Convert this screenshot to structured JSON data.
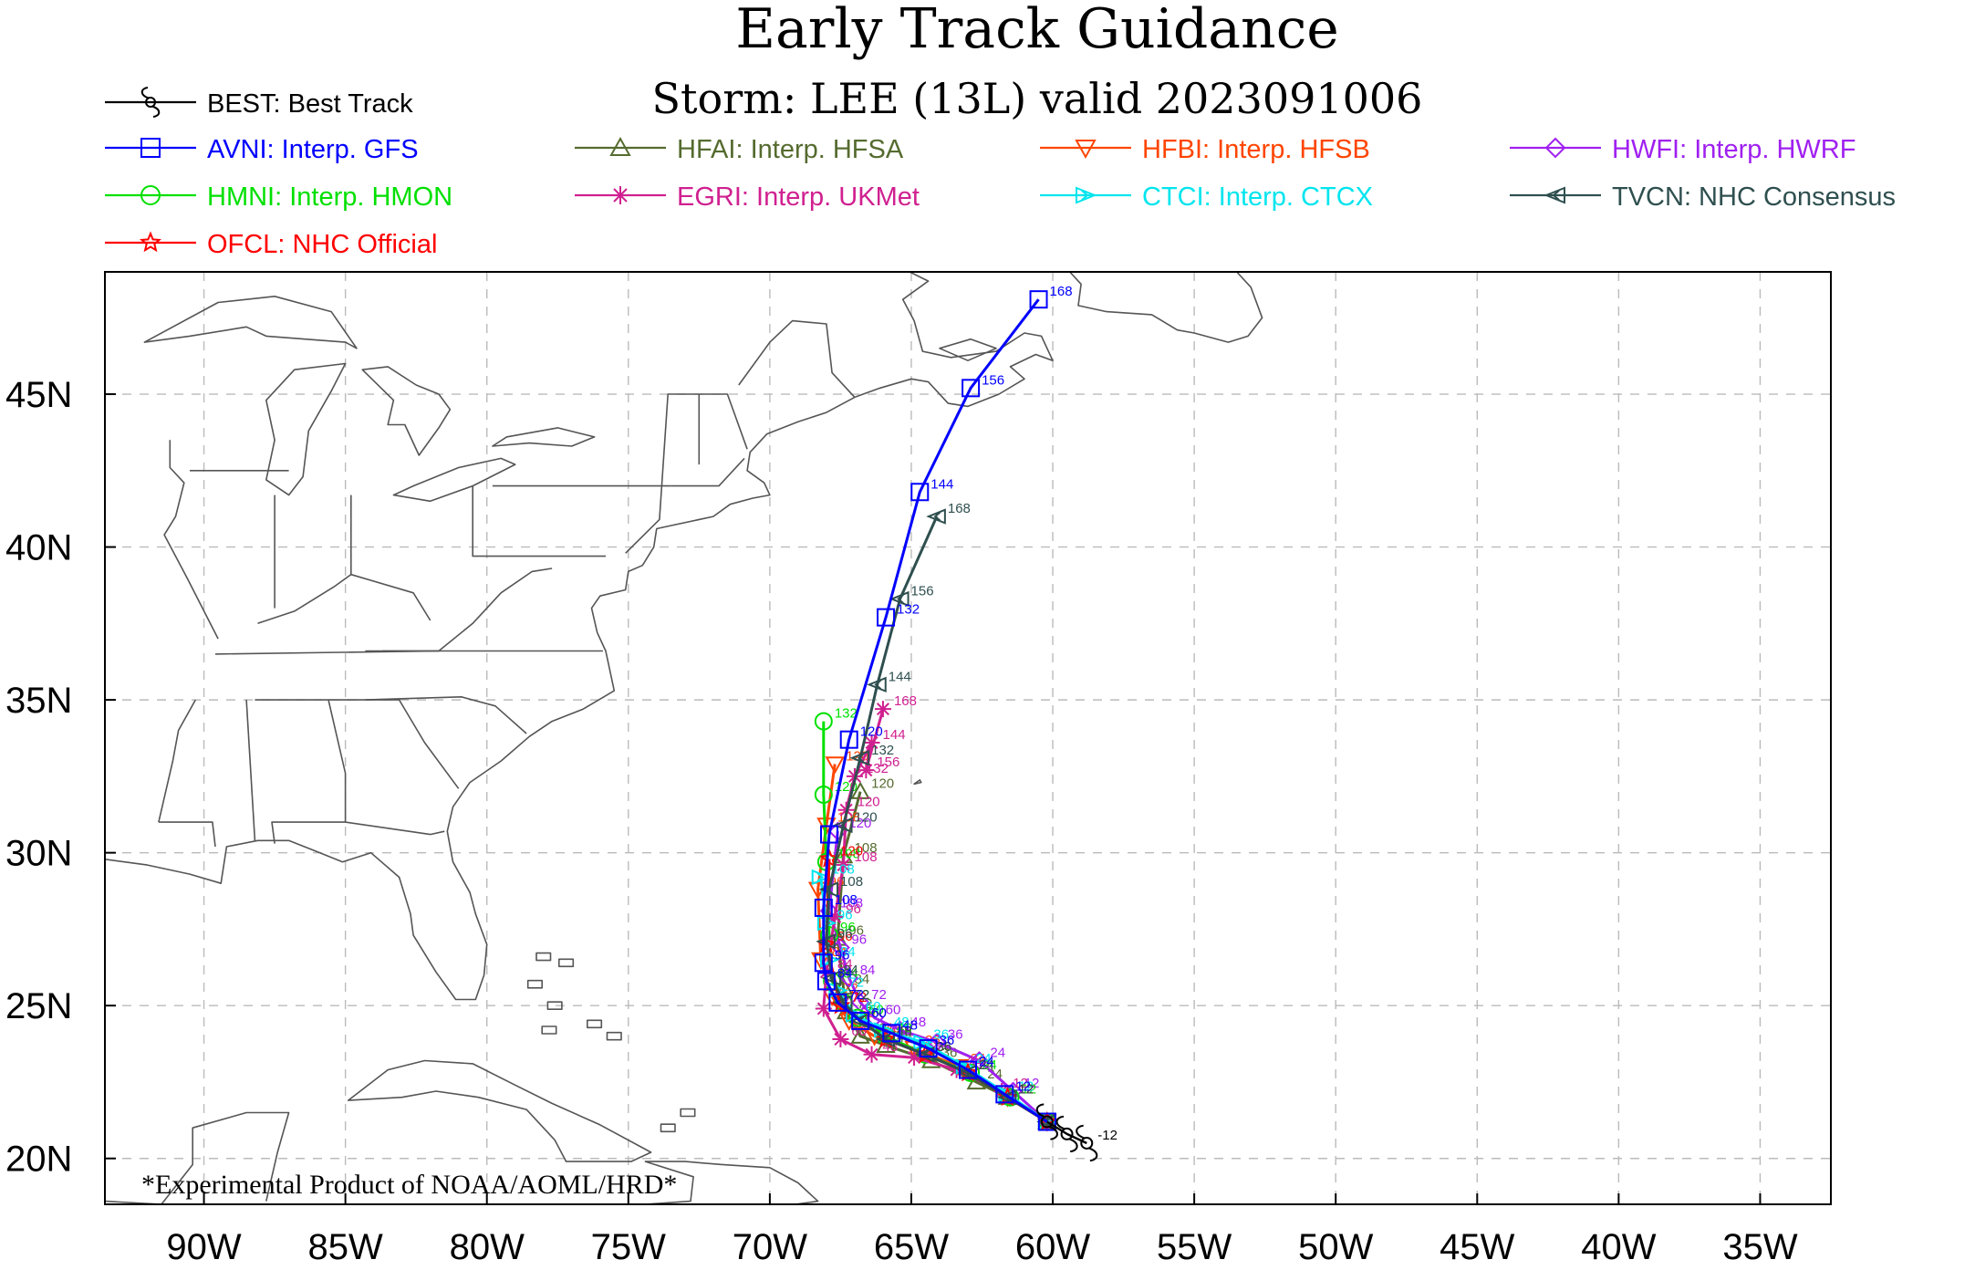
{
  "title": "Early Track Guidance",
  "subtitle": "Storm: LEE (13L) valid 2023091006",
  "footer_note": "*Experimental Product of NOAA/AOML/HRD*",
  "map": {
    "lon_ticks": [
      {
        "lon": -90,
        "label": "90W"
      },
      {
        "lon": -85,
        "label": "85W"
      },
      {
        "lon": -80,
        "label": "80W"
      },
      {
        "lon": -75,
        "label": "75W"
      },
      {
        "lon": -70,
        "label": "70W"
      },
      {
        "lon": -65,
        "label": "65W"
      },
      {
        "lon": -60,
        "label": "60W"
      },
      {
        "lon": -55,
        "label": "55W"
      },
      {
        "lon": -50,
        "label": "50W"
      },
      {
        "lon": -45,
        "label": "45W"
      },
      {
        "lon": -40,
        "label": "40W"
      },
      {
        "lon": -35,
        "label": "35W"
      }
    ],
    "lat_ticks": [
      {
        "lat": 20,
        "label": "20N"
      },
      {
        "lat": 25,
        "label": "25N"
      },
      {
        "lat": 30,
        "label": "30N"
      },
      {
        "lat": 35,
        "label": "35N"
      },
      {
        "lat": 40,
        "label": "40N"
      },
      {
        "lat": 45,
        "label": "45N"
      }
    ],
    "lon_range": [
      -93.5,
      -32.5
    ],
    "lat_range": [
      18.5,
      49.0
    ],
    "grid": "dashed",
    "colors": {
      "land_outline": "#555555",
      "grid": "#bbbbbb",
      "frame": "#000000"
    }
  },
  "legend": [
    {
      "id": "BEST",
      "label": "BEST: Best Track",
      "color": "#000000",
      "marker": "hurricane"
    },
    {
      "id": "AVNI",
      "label": "AVNI: Interp. GFS",
      "color": "#0000ff",
      "marker": "square"
    },
    {
      "id": "HFAI",
      "label": "HFAI: Interp. HFSA",
      "color": "#556b2f",
      "marker": "triangle"
    },
    {
      "id": "HFBI",
      "label": "HFBI: Interp. HFSB",
      "color": "#ff4500",
      "marker": "triangle-down"
    },
    {
      "id": "HWFI",
      "label": "HWFI: Interp. HWRF",
      "color": "#a020f0",
      "marker": "diamond"
    },
    {
      "id": "HMNI",
      "label": "HMNI: Interp. HMON",
      "color": "#00e000",
      "marker": "circle"
    },
    {
      "id": "EGRI",
      "label": "EGRI: Interp. UKMet",
      "color": "#d02090",
      "marker": "asterisk"
    },
    {
      "id": "CTCI",
      "label": "CTCI: Interp. CTCX",
      "color": "#00e5ee",
      "marker": "arrow-right"
    },
    {
      "id": "TVCN",
      "label": "TVCN: NHC Consensus",
      "color": "#2f4f4f",
      "marker": "arrow-left"
    },
    {
      "id": "OFCL",
      "label": "OFCL: NHC Official",
      "color": "#ff0000",
      "marker": "star"
    }
  ],
  "chart_data": {
    "type": "line",
    "title": "Early Track Guidance",
    "subtitle": "Storm: LEE (13L) valid 2023091006",
    "xlabel": "",
    "ylabel": "",
    "xlim": [
      -93.5,
      -32.5
    ],
    "ylim": [
      18.5,
      49.0
    ],
    "series": [
      {
        "name": "BEST: Best Track",
        "id": "BEST",
        "points": [
          {
            "tau": -12,
            "lon": -58.8,
            "lat": 20.5
          },
          {
            "tau": -6,
            "lon": -59.5,
            "lat": 20.8
          },
          {
            "tau": 0,
            "lon": -60.2,
            "lat": 21.2
          }
        ]
      },
      {
        "name": "AVNI: Interp. GFS",
        "id": "AVNI",
        "points": [
          {
            "tau": 0,
            "lon": -60.2,
            "lat": 21.2
          },
          {
            "tau": 12,
            "lon": -61.7,
            "lat": 22.1
          },
          {
            "tau": 24,
            "lon": -63.0,
            "lat": 22.9
          },
          {
            "tau": 36,
            "lon": -64.4,
            "lat": 23.6
          },
          {
            "tau": 48,
            "lon": -65.7,
            "lat": 24.1
          },
          {
            "tau": 60,
            "lon": -66.8,
            "lat": 24.5
          },
          {
            "tau": 72,
            "lon": -67.6,
            "lat": 25.1
          },
          {
            "tau": 84,
            "lon": -68.0,
            "lat": 25.8
          },
          {
            "tau": 96,
            "lon": -68.1,
            "lat": 26.4
          },
          {
            "tau": 108,
            "lon": -68.1,
            "lat": 28.2
          },
          {
            "tau": 112,
            "lon": -67.9,
            "lat": 30.6
          },
          {
            "tau": 120,
            "lon": -67.2,
            "lat": 33.7
          },
          {
            "tau": 132,
            "lon": -65.9,
            "lat": 37.7
          },
          {
            "tau": 144,
            "lon": -64.7,
            "lat": 41.8
          },
          {
            "tau": 156,
            "lon": -62.9,
            "lat": 45.2
          },
          {
            "tau": 168,
            "lon": -60.5,
            "lat": 48.1
          }
        ]
      },
      {
        "name": "HFAI: Interp. HFSA",
        "id": "HFAI",
        "points": [
          {
            "tau": 0,
            "lon": -60.2,
            "lat": 21.2
          },
          {
            "tau": 12,
            "lon": -61.6,
            "lat": 22.0
          },
          {
            "tau": 24,
            "lon": -62.7,
            "lat": 22.5
          },
          {
            "tau": 36,
            "lon": -64.3,
            "lat": 23.2
          },
          {
            "tau": 48,
            "lon": -65.9,
            "lat": 23.7
          },
          {
            "tau": 60,
            "lon": -66.8,
            "lat": 24.0
          },
          {
            "tau": 72,
            "lon": -67.3,
            "lat": 24.8
          },
          {
            "tau": 84,
            "lon": -67.4,
            "lat": 25.6
          },
          {
            "tau": 96,
            "lon": -67.6,
            "lat": 27.2
          },
          {
            "tau": 108,
            "lon": -67.4,
            "lat": 29.9
          },
          {
            "tau": 120,
            "lon": -66.8,
            "lat": 32.0
          }
        ]
      },
      {
        "name": "HFBI: Interp. HFSB",
        "id": "HFBI",
        "points": [
          {
            "tau": 0,
            "lon": -60.2,
            "lat": 21.2
          },
          {
            "tau": 12,
            "lon": -61.6,
            "lat": 22.0
          },
          {
            "tau": 24,
            "lon": -63.3,
            "lat": 23.0
          },
          {
            "tau": 36,
            "lon": -64.9,
            "lat": 23.6
          },
          {
            "tau": 48,
            "lon": -66.3,
            "lat": 24.0
          },
          {
            "tau": 60,
            "lon": -67.2,
            "lat": 24.5
          },
          {
            "tau": 72,
            "lon": -67.8,
            "lat": 25.3
          },
          {
            "tau": 84,
            "lon": -68.2,
            "lat": 26.5
          },
          {
            "tau": 96,
            "lon": -68.3,
            "lat": 28.8
          },
          {
            "tau": 108,
            "lon": -68.0,
            "lat": 30.9
          },
          {
            "tau": 120,
            "lon": -67.7,
            "lat": 32.9
          }
        ]
      },
      {
        "name": "HWFI: Interp. HWRF",
        "id": "HWFI",
        "points": [
          {
            "tau": 0,
            "lon": -60.2,
            "lat": 21.2
          },
          {
            "tau": 12,
            "lon": -61.4,
            "lat": 22.2
          },
          {
            "tau": 24,
            "lon": -62.6,
            "lat": 23.2
          },
          {
            "tau": 36,
            "lon": -64.1,
            "lat": 23.8
          },
          {
            "tau": 48,
            "lon": -65.4,
            "lat": 24.2
          },
          {
            "tau": 60,
            "lon": -66.3,
            "lat": 24.6
          },
          {
            "tau": 72,
            "lon": -66.8,
            "lat": 25.1
          },
          {
            "tau": 84,
            "lon": -67.2,
            "lat": 25.9
          },
          {
            "tau": 96,
            "lon": -67.5,
            "lat": 26.9
          },
          {
            "tau": 108,
            "lon": -67.9,
            "lat": 28.1
          },
          {
            "tau": 120,
            "lon": -67.6,
            "lat": 30.7
          }
        ]
      },
      {
        "name": "HMNI: Interp. HMON",
        "id": "HMNI",
        "points": [
          {
            "tau": 0,
            "lon": -60.2,
            "lat": 21.2
          },
          {
            "tau": 12,
            "lon": -61.5,
            "lat": 22.0
          },
          {
            "tau": 24,
            "lon": -62.9,
            "lat": 22.8
          },
          {
            "tau": 36,
            "lon": -64.5,
            "lat": 23.4
          },
          {
            "tau": 48,
            "lon": -65.9,
            "lat": 24.0
          },
          {
            "tau": 60,
            "lon": -66.9,
            "lat": 24.6
          },
          {
            "tau": 72,
            "lon": -67.4,
            "lat": 25.1
          },
          {
            "tau": 84,
            "lon": -67.8,
            "lat": 25.8
          },
          {
            "tau": 96,
            "lon": -67.9,
            "lat": 27.3
          },
          {
            "tau": 108,
            "lon": -68.0,
            "lat": 29.7
          },
          {
            "tau": 120,
            "lon": -68.1,
            "lat": 31.9
          },
          {
            "tau": 132,
            "lon": -68.1,
            "lat": 34.3
          }
        ]
      },
      {
        "name": "EGRI: Interp. UKMet",
        "id": "EGRI",
        "points": [
          {
            "tau": 0,
            "lon": -60.2,
            "lat": 21.2
          },
          {
            "tau": 12,
            "lon": -61.8,
            "lat": 22.2
          },
          {
            "tau": 24,
            "lon": -63.4,
            "lat": 22.9
          },
          {
            "tau": 36,
            "lon": -64.9,
            "lat": 23.3
          },
          {
            "tau": 48,
            "lon": -66.4,
            "lat": 23.4
          },
          {
            "tau": 60,
            "lon": -67.5,
            "lat": 23.9
          },
          {
            "tau": 72,
            "lon": -68.1,
            "lat": 24.9
          },
          {
            "tau": 84,
            "lon": -68.0,
            "lat": 26.1
          },
          {
            "tau": 96,
            "lon": -67.7,
            "lat": 27.9
          },
          {
            "tau": 108,
            "lon": -67.4,
            "lat": 29.6
          },
          {
            "tau": 120,
            "lon": -67.3,
            "lat": 31.4
          },
          {
            "tau": 132,
            "lon": -67.0,
            "lat": 32.5
          },
          {
            "tau": 144,
            "lon": -66.4,
            "lat": 33.6
          },
          {
            "tau": 156,
            "lon": -66.6,
            "lat": 32.7
          },
          {
            "tau": 168,
            "lon": -66.0,
            "lat": 34.7
          }
        ]
      },
      {
        "name": "CTCI: Interp. CTCX",
        "id": "CTCI",
        "points": [
          {
            "tau": 0,
            "lon": -60.2,
            "lat": 21.2
          },
          {
            "tau": 12,
            "lon": -61.6,
            "lat": 22.1
          },
          {
            "tau": 24,
            "lon": -63.1,
            "lat": 23.0
          },
          {
            "tau": 36,
            "lon": -64.6,
            "lat": 23.8
          },
          {
            "tau": 48,
            "lon": -66.0,
            "lat": 24.2
          },
          {
            "tau": 60,
            "lon": -67.0,
            "lat": 24.7
          },
          {
            "tau": 72,
            "lon": -67.6,
            "lat": 25.5
          },
          {
            "tau": 84,
            "lon": -67.9,
            "lat": 26.5
          },
          {
            "tau": 96,
            "lon": -68.0,
            "lat": 27.7
          },
          {
            "tau": 108,
            "lon": -68.2,
            "lat": 29.2
          }
        ]
      },
      {
        "name": "TVCN: NHC Consensus",
        "id": "TVCN",
        "points": [
          {
            "tau": 0,
            "lon": -60.2,
            "lat": 21.2
          },
          {
            "tau": 12,
            "lon": -61.6,
            "lat": 22.0
          },
          {
            "tau": 24,
            "lon": -63.0,
            "lat": 22.8
          },
          {
            "tau": 36,
            "lon": -64.5,
            "lat": 23.4
          },
          {
            "tau": 48,
            "lon": -65.9,
            "lat": 23.9
          },
          {
            "tau": 60,
            "lon": -66.8,
            "lat": 24.5
          },
          {
            "tau": 72,
            "lon": -67.4,
            "lat": 25.1
          },
          {
            "tau": 84,
            "lon": -67.8,
            "lat": 25.9
          },
          {
            "tau": 96,
            "lon": -68.0,
            "lat": 27.1
          },
          {
            "tau": 108,
            "lon": -67.9,
            "lat": 28.8
          },
          {
            "tau": 120,
            "lon": -67.4,
            "lat": 30.9
          },
          {
            "tau": 132,
            "lon": -66.8,
            "lat": 33.1
          },
          {
            "tau": 144,
            "lon": -66.2,
            "lat": 35.5
          },
          {
            "tau": 156,
            "lon": -65.4,
            "lat": 38.3
          },
          {
            "tau": 168,
            "lon": -64.1,
            "lat": 41.0
          }
        ]
      },
      {
        "name": "OFCL: NHC Official",
        "id": "OFCL",
        "points": [
          {
            "tau": 0,
            "lon": -60.2,
            "lat": 21.2
          },
          {
            "tau": 12,
            "lon": -61.6,
            "lat": 22.0
          },
          {
            "tau": 24,
            "lon": -63.0,
            "lat": 22.8
          },
          {
            "tau": 36,
            "lon": -64.5,
            "lat": 23.4
          },
          {
            "tau": 48,
            "lon": -65.9,
            "lat": 23.9
          },
          {
            "tau": 72,
            "lon": -67.5,
            "lat": 25.0
          },
          {
            "tau": 96,
            "lon": -68.0,
            "lat": 27.0
          },
          {
            "tau": 120,
            "lon": -67.9,
            "lat": 29.8
          }
        ]
      }
    ]
  }
}
